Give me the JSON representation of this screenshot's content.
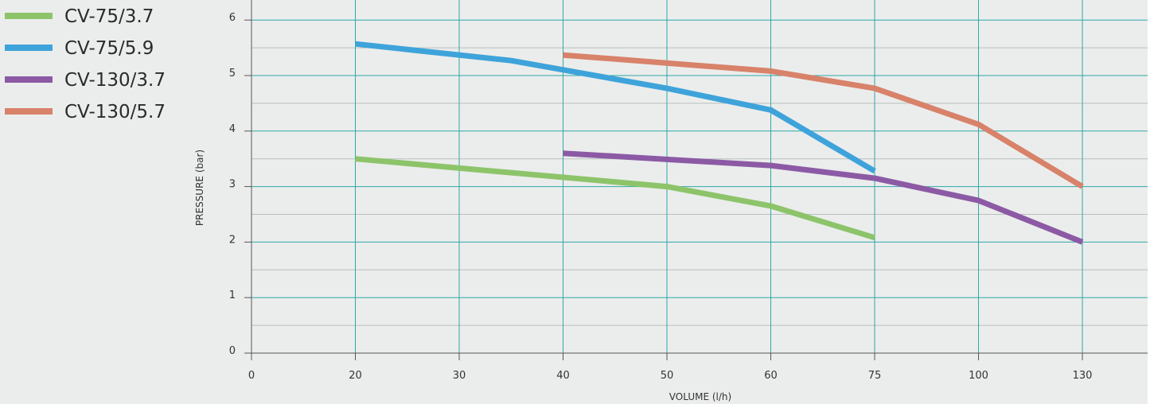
{
  "chart_data": {
    "type": "line",
    "xlabel": "VOLUME (l/h)",
    "ylabel": "PRESSURE (bar)",
    "x_ticks": [
      "0",
      "20",
      "30",
      "40",
      "50",
      "60",
      "75",
      "100",
      "130"
    ],
    "y_ticks": [
      "0",
      "1",
      "2",
      "3",
      "4",
      "5",
      "6"
    ],
    "ylim": [
      0,
      6
    ],
    "grid": true,
    "legend_position": "top-left",
    "series": [
      {
        "name": "CV-75/3.7",
        "color": "#8dc46a",
        "points": [
          [
            20,
            3.5
          ],
          [
            50,
            3.0
          ],
          [
            60,
            2.65
          ],
          [
            75,
            2.08
          ]
        ]
      },
      {
        "name": "CV-75/5.9",
        "color": "#3ea3da",
        "points": [
          [
            20,
            5.57
          ],
          [
            35,
            5.27
          ],
          [
            50,
            4.77
          ],
          [
            60,
            4.38
          ],
          [
            75,
            3.28
          ]
        ]
      },
      {
        "name": "CV-130/3.7",
        "color": "#8c5aa5",
        "points": [
          [
            40,
            3.6
          ],
          [
            60,
            3.38
          ],
          [
            75,
            3.15
          ],
          [
            100,
            2.75
          ],
          [
            130,
            2.0
          ]
        ]
      },
      {
        "name": "CV-130/5.7",
        "color": "#d8826a",
        "points": [
          [
            40,
            5.37
          ],
          [
            60,
            5.08
          ],
          [
            75,
            4.77
          ],
          [
            100,
            4.12
          ],
          [
            130,
            3.0
          ]
        ]
      }
    ]
  }
}
